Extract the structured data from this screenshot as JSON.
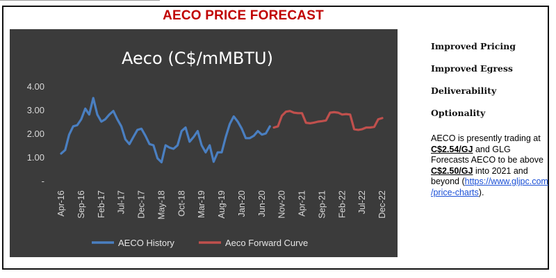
{
  "page": {
    "title": "AECO PRICE FORECAST",
    "colors": {
      "title": "#c00000",
      "chart_bg": "#3b3b3b",
      "history": "#4a7fc1",
      "forward": "#c0504d"
    }
  },
  "side": {
    "headings": [
      "Improved Pricing",
      "Improved Egress",
      "Deliverability",
      "Optionality"
    ],
    "text_1": "AECO is presently trading at ",
    "price_now": "C$2.54/GJ",
    "text_2": " and GLG Forecasts AECO to be above ",
    "price_target": "C$2.50/GJ",
    "text_3": " into 2021 and beyond (",
    "link_1": "https://www.gljpc.com",
    "link_2": "/price-charts",
    "text_4": ")."
  },
  "chart_data": {
    "type": "line",
    "title": "Aeco (C$/mMBTU)",
    "xlabel": "",
    "ylabel": "",
    "ylim": [
      0,
      4
    ],
    "yticks": [
      "-",
      "1.00",
      "2.00",
      "3.00",
      "4.00"
    ],
    "x_range": [
      "2016-04",
      "2022-12"
    ],
    "xticks": [
      {
        "label": "Apr-16",
        "date": "2016-04"
      },
      {
        "label": "Sep-16",
        "date": "2016-09"
      },
      {
        "label": "Feb-17",
        "date": "2017-02"
      },
      {
        "label": "Jul-17",
        "date": "2017-07"
      },
      {
        "label": "Dec-17",
        "date": "2017-12"
      },
      {
        "label": "May-18",
        "date": "2018-05"
      },
      {
        "label": "Oct-18",
        "date": "2018-10"
      },
      {
        "label": "Mar-19",
        "date": "2019-03"
      },
      {
        "label": "Aug-19",
        "date": "2019-08"
      },
      {
        "label": "Jan-20",
        "date": "2020-01"
      },
      {
        "label": "Jun-20",
        "date": "2020-06"
      },
      {
        "label": "Nov-20",
        "date": "2020-11"
      },
      {
        "label": "Apr-21",
        "date": "2021-04"
      },
      {
        "label": "Sep-21",
        "date": "2021-09"
      },
      {
        "label": "Feb-22",
        "date": "2022-02"
      },
      {
        "label": "Jul-22",
        "date": "2022-07"
      },
      {
        "label": "Dec-22",
        "date": "2022-12"
      }
    ],
    "grid": false,
    "legend": "bottom",
    "series": [
      {
        "name": "AECO History",
        "color": "#4a7fc1",
        "points": [
          [
            "2016-04",
            1.15
          ],
          [
            "2016-05",
            1.3
          ],
          [
            "2016-06",
            1.95
          ],
          [
            "2016-07",
            2.3
          ],
          [
            "2016-08",
            2.35
          ],
          [
            "2016-09",
            2.6
          ],
          [
            "2016-10",
            3.05
          ],
          [
            "2016-11",
            2.8
          ],
          [
            "2016-12",
            3.5
          ],
          [
            "2017-01",
            2.8
          ],
          [
            "2017-02",
            2.5
          ],
          [
            "2017-03",
            2.6
          ],
          [
            "2017-04",
            2.8
          ],
          [
            "2017-05",
            2.95
          ],
          [
            "2017-06",
            2.6
          ],
          [
            "2017-07",
            2.3
          ],
          [
            "2017-08",
            1.75
          ],
          [
            "2017-09",
            1.55
          ],
          [
            "2017-10",
            1.85
          ],
          [
            "2017-11",
            2.15
          ],
          [
            "2017-12",
            2.2
          ],
          [
            "2017-13",
            1.9
          ],
          [
            "2018-01",
            1.9
          ],
          [
            "2018-02",
            1.55
          ],
          [
            "2018-03",
            1.5
          ],
          [
            "2018-04",
            0.95
          ],
          [
            "2018-05",
            0.78
          ],
          [
            "2018-06",
            1.5
          ],
          [
            "2018-07",
            1.4
          ],
          [
            "2018-08",
            1.35
          ],
          [
            "2018-09",
            1.5
          ],
          [
            "2018-10",
            2.1
          ],
          [
            "2018-11",
            2.25
          ],
          [
            "2018-12",
            1.65
          ],
          [
            "2019-01",
            1.85
          ],
          [
            "2019-02",
            2.1
          ],
          [
            "2019-03",
            1.5
          ],
          [
            "2019-04",
            1.2
          ],
          [
            "2019-05",
            1.5
          ],
          [
            "2019-06",
            0.8
          ],
          [
            "2019-07",
            1.2
          ],
          [
            "2019-08",
            1.2
          ],
          [
            "2019-09",
            1.85
          ],
          [
            "2019-10",
            2.4
          ],
          [
            "2019-11",
            2.72
          ],
          [
            "2019-12",
            2.5
          ],
          [
            "2020-01",
            2.2
          ],
          [
            "2020-02",
            1.8
          ],
          [
            "2020-03",
            1.8
          ],
          [
            "2020-04",
            1.9
          ],
          [
            "2020-05",
            2.1
          ],
          [
            "2020-06",
            1.95
          ],
          [
            "2020-07",
            2.0
          ],
          [
            "2020-08",
            2.3
          ]
        ]
      },
      {
        "name": "Aeco Forward Curve",
        "color": "#c0504d",
        "points": [
          [
            "2020-09",
            2.25
          ],
          [
            "2020-10",
            2.3
          ],
          [
            "2020-11",
            2.75
          ],
          [
            "2020-12",
            2.92
          ],
          [
            "2021-01",
            2.95
          ],
          [
            "2021-02",
            2.88
          ],
          [
            "2021-03",
            2.86
          ],
          [
            "2021-04",
            2.86
          ],
          [
            "2021-05",
            2.45
          ],
          [
            "2021-06",
            2.43
          ],
          [
            "2021-07",
            2.46
          ],
          [
            "2021-08",
            2.5
          ],
          [
            "2021-09",
            2.52
          ],
          [
            "2021-10",
            2.55
          ],
          [
            "2021-11",
            2.88
          ],
          [
            "2021-12",
            2.9
          ],
          [
            "2022-01",
            2.88
          ],
          [
            "2022-02",
            2.8
          ],
          [
            "2022-03",
            2.82
          ],
          [
            "2022-04",
            2.8
          ],
          [
            "2022-05",
            2.18
          ],
          [
            "2022-06",
            2.15
          ],
          [
            "2022-07",
            2.18
          ],
          [
            "2022-08",
            2.25
          ],
          [
            "2022-09",
            2.25
          ],
          [
            "2022-10",
            2.28
          ],
          [
            "2022-11",
            2.6
          ],
          [
            "2022-12",
            2.65
          ]
        ]
      }
    ]
  }
}
